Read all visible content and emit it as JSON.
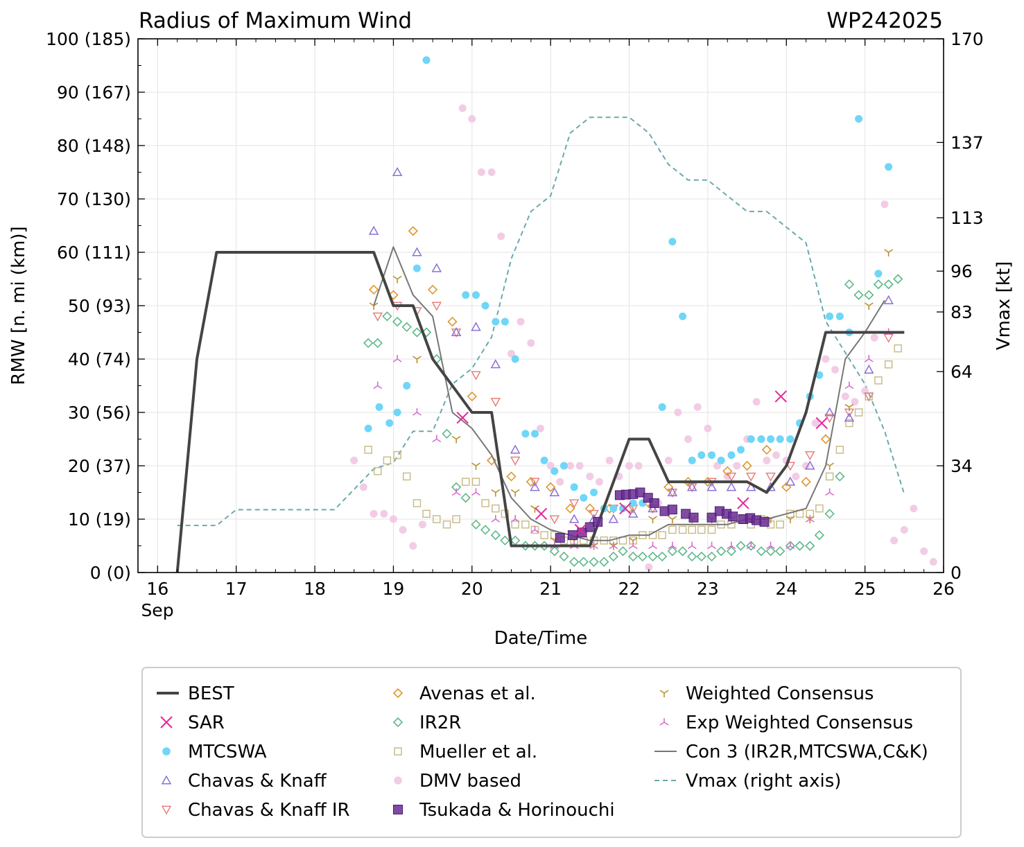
{
  "chart_data": {
    "type": "scatter",
    "title": "Radius of Maximum Wind",
    "title_right": "WP242025",
    "xlabel": "Date/Time",
    "ylabel": "RMW [n. mi (km)]",
    "ylabel_right": "Vmax [kt]",
    "xlim": [
      15.75,
      26.0
    ],
    "ylim": [
      0,
      100
    ],
    "x_ticks": [
      16,
      17,
      18,
      19,
      20,
      21,
      22,
      23,
      24,
      25,
      26
    ],
    "x_tick_labels": [
      "16",
      "17",
      "18",
      "19",
      "20",
      "21",
      "22",
      "23",
      "24",
      "25",
      "26"
    ],
    "x_month_label": "Sep",
    "y_ticks": [
      0,
      10,
      20,
      30,
      40,
      50,
      60,
      70,
      80,
      90,
      100
    ],
    "y_tick_labels": [
      "0 (0)",
      "10 (19)",
      "20 (37)",
      "30 (56)",
      "40 (74)",
      "50 (93)",
      "60 (111)",
      "70 (130)",
      "80 (148)",
      "90 (167)",
      "100 (185)"
    ],
    "y2_lim": [
      0,
      170
    ],
    "y2_ticks": [
      0,
      34,
      64,
      83,
      96,
      113,
      137,
      170
    ],
    "y2_tick_labels": [
      "0",
      "34",
      "64",
      "83",
      "96",
      "113",
      "137",
      "170"
    ],
    "grid": true,
    "legend_position": "bottom",
    "legend": [
      {
        "label": "BEST",
        "marker": "line",
        "color": "#444444"
      },
      {
        "label": "SAR",
        "marker": "x",
        "color": "#e6259a"
      },
      {
        "label": "MTCSWA",
        "marker": "circle",
        "color": "#6fd6f7"
      },
      {
        "label": "Chavas & Knaff",
        "marker": "triangle-up",
        "color": "#8b6fd6"
      },
      {
        "label": "Chavas & Knaff IR",
        "marker": "triangle-down",
        "color": "#e88080"
      },
      {
        "label": "Avenas et al.",
        "marker": "diamond",
        "color": "#e0962b"
      },
      {
        "label": "IR2R",
        "marker": "diamond",
        "color": "#5cb887"
      },
      {
        "label": "Mueller et al.",
        "marker": "square-open",
        "color": "#c9bc8a"
      },
      {
        "label": "DMV based",
        "marker": "circle",
        "color": "#f2cce4"
      },
      {
        "label": "Tsukada & Horinouchi",
        "marker": "square-filled",
        "color": "#6a2b94"
      },
      {
        "label": "Weighted Consensus",
        "marker": "tri-down",
        "color": "#b8902b"
      },
      {
        "label": "Exp Weighted Consensus",
        "marker": "tri-up",
        "color": "#d86ad2"
      },
      {
        "label": "Con 3 (IR2R,MTCSWA,C&K)",
        "marker": "line",
        "color": "#777777"
      },
      {
        "label": "Vmax (right axis)",
        "marker": "dashed",
        "color": "#6aa9ac"
      }
    ],
    "series": [
      {
        "name": "BEST",
        "kind": "line",
        "color": "#444444",
        "x": [
          16.25,
          16.5,
          16.75,
          17.0,
          18.75,
          19.0,
          19.25,
          19.5,
          19.75,
          20.0,
          20.25,
          20.5,
          20.75,
          21.0,
          21.25,
          21.5,
          21.75,
          22.0,
          22.25,
          22.5,
          22.75,
          23.0,
          23.25,
          23.5,
          23.75,
          24.0,
          24.25,
          24.5,
          24.75,
          25.0,
          25.25,
          25.5
        ],
        "y": [
          0,
          40,
          60,
          60,
          60,
          50,
          50,
          40,
          35,
          30,
          30,
          5,
          5,
          5,
          5,
          5,
          15,
          25,
          25,
          17,
          17,
          17,
          17,
          17,
          15,
          20,
          30,
          45,
          45,
          45,
          45,
          45
        ]
      },
      {
        "name": "Con 3 (IR2R,MTCSWA,C&K)",
        "kind": "line",
        "color": "#777777",
        "x": [
          18.75,
          19.0,
          19.25,
          19.5,
          19.75,
          20.0,
          20.25,
          20.5,
          20.75,
          21.0,
          21.25,
          21.5,
          21.75,
          22.0,
          22.25,
          22.5,
          22.75,
          23.0,
          23.25,
          23.5,
          23.75,
          24.0,
          24.25,
          24.5,
          24.75,
          25.0,
          25.25
        ],
        "y": [
          50,
          61,
          52,
          48,
          30,
          27,
          22,
          14,
          10,
          8,
          7,
          6,
          6,
          7,
          7,
          9,
          9,
          9,
          9,
          10,
          10,
          11,
          12,
          20,
          40,
          45,
          51
        ]
      },
      {
        "name": "Vmax (right axis)",
        "kind": "dashed",
        "axis": "right",
        "color": "#6aa9ac",
        "x": [
          16.25,
          16.75,
          17.0,
          18.0,
          18.25,
          18.75,
          19.0,
          19.25,
          19.5,
          19.75,
          20.0,
          20.25,
          20.5,
          20.75,
          21.0,
          21.25,
          21.5,
          21.75,
          22.0,
          22.25,
          22.5,
          22.75,
          23.0,
          23.25,
          23.5,
          23.75,
          24.0,
          24.25,
          24.5,
          24.75,
          25.0,
          25.25,
          25.5
        ],
        "y": [
          15,
          15,
          20,
          20,
          20,
          33,
          35,
          45,
          45,
          60,
          65,
          75,
          100,
          115,
          120,
          140,
          145,
          145,
          145,
          140,
          130,
          125,
          125,
          120,
          115,
          115,
          110,
          105,
          80,
          70,
          60,
          45,
          25
        ]
      },
      {
        "name": "SAR",
        "kind": "x",
        "color": "#e6259a",
        "x": [
          19.88,
          20.88,
          21.38,
          21.95,
          23.45,
          23.93,
          24.45
        ],
        "y": [
          29,
          11,
          8,
          12,
          13,
          33,
          28
        ]
      },
      {
        "name": "MTCSWA",
        "kind": "circle",
        "color": "#6fd6f7",
        "x": [
          18.68,
          18.82,
          18.95,
          19.05,
          19.17,
          19.3,
          19.42,
          19.92,
          20.05,
          20.17,
          20.3,
          20.42,
          20.55,
          20.68,
          20.8,
          20.92,
          21.05,
          21.17,
          21.3,
          21.42,
          21.55,
          21.68,
          21.8,
          21.92,
          22.05,
          22.17,
          22.42,
          22.55,
          22.68,
          22.8,
          22.92,
          23.05,
          23.17,
          23.3,
          23.42,
          23.55,
          23.68,
          23.8,
          23.92,
          24.05,
          24.17,
          24.3,
          24.42,
          24.55,
          24.68,
          24.8,
          24.92,
          25.17,
          25.3
        ],
        "y": [
          27,
          31,
          28,
          30,
          35,
          57,
          96,
          52,
          52,
          50,
          47,
          47,
          40,
          26,
          26,
          21,
          19,
          20,
          16,
          14,
          15,
          12,
          12,
          12,
          13,
          13,
          31,
          62,
          48,
          21,
          22,
          22,
          21,
          22,
          23,
          25,
          25,
          25,
          25,
          25,
          28,
          33,
          37,
          48,
          48,
          45,
          85,
          56,
          76
        ]
      },
      {
        "name": "Chavas & Knaff",
        "kind": "triangle-up",
        "color": "#8b6fd6",
        "x": [
          18.75,
          19.05,
          19.3,
          19.55,
          19.8,
          20.05,
          20.3,
          20.55,
          20.8,
          21.05,
          21.3,
          21.55,
          21.8,
          22.05,
          22.3,
          22.55,
          22.8,
          23.05,
          23.3,
          23.55,
          23.8,
          24.05,
          24.3,
          24.55,
          24.8,
          25.05,
          25.3
        ],
        "y": [
          64,
          75,
          60,
          57,
          45,
          46,
          39,
          23,
          16,
          15,
          10,
          10,
          10,
          11,
          12,
          15,
          16,
          16,
          16,
          16,
          16,
          17,
          20,
          30,
          29,
          38,
          51
        ]
      },
      {
        "name": "Chavas & Knaff IR",
        "kind": "triangle-down",
        "color": "#e88080",
        "x": [
          18.8,
          19.05,
          19.3,
          19.55,
          19.8,
          20.05,
          20.3,
          20.55,
          20.8,
          21.05,
          21.3,
          21.55,
          21.8,
          22.05,
          22.3,
          22.55,
          22.8,
          23.05,
          23.3,
          23.55,
          23.8,
          24.05,
          24.3,
          24.55,
          24.8,
          25.05,
          25.3
        ],
        "y": [
          48,
          50,
          49,
          50,
          45,
          37,
          32,
          21,
          17,
          10,
          13,
          11,
          12,
          12,
          12,
          15,
          16,
          17,
          18,
          18,
          18,
          20,
          22,
          29,
          30,
          33,
          44
        ]
      },
      {
        "name": "Avenas et al.",
        "kind": "diamond",
        "color": "#e0962b",
        "x": [
          18.75,
          19.0,
          19.25,
          19.5,
          19.75,
          20.0,
          20.25,
          20.5,
          20.75,
          21.0,
          21.25,
          21.5,
          21.75,
          22.0,
          22.25,
          22.5,
          22.75,
          23.0,
          23.25,
          23.5,
          23.75,
          24.0,
          24.25,
          24.5
        ],
        "y": [
          53,
          52,
          64,
          53,
          47,
          33,
          21,
          18,
          17,
          16,
          12,
          12,
          12,
          12,
          13,
          16,
          17,
          17,
          19,
          20,
          23,
          16,
          17,
          25
        ]
      },
      {
        "name": "IR2R",
        "kind": "diamond",
        "color": "#5cb887",
        "x": [
          18.68,
          18.8,
          18.92,
          19.05,
          19.17,
          19.3,
          19.42,
          19.55,
          19.68,
          19.8,
          19.92,
          20.05,
          20.17,
          20.3,
          20.42,
          20.55,
          20.68,
          20.8,
          20.92,
          21.05,
          21.17,
          21.3,
          21.42,
          21.55,
          21.68,
          21.8,
          21.92,
          22.05,
          22.17,
          22.3,
          22.42,
          22.55,
          22.68,
          22.8,
          22.92,
          23.05,
          23.17,
          23.3,
          23.42,
          23.55,
          23.68,
          23.8,
          23.92,
          24.05,
          24.17,
          24.3,
          24.42,
          24.55,
          24.68,
          24.8,
          24.92,
          25.05,
          25.17,
          25.3,
          25.42
        ],
        "y": [
          43,
          43,
          48,
          47,
          46,
          45,
          45,
          40,
          26,
          16,
          14,
          9,
          8,
          7,
          6,
          6,
          5,
          5,
          5,
          4,
          3,
          2,
          2,
          2,
          2,
          3,
          4,
          3,
          3,
          3,
          3,
          4,
          4,
          3,
          3,
          3,
          4,
          4,
          5,
          5,
          4,
          4,
          4,
          5,
          5,
          5,
          7,
          11,
          18,
          54,
          52,
          52,
          54,
          54,
          55
        ]
      },
      {
        "name": "Mueller et al.",
        "kind": "square-open",
        "color": "#c9bc8a",
        "x": [
          18.68,
          18.8,
          18.92,
          19.05,
          19.17,
          19.3,
          19.42,
          19.55,
          19.68,
          19.8,
          19.92,
          20.05,
          20.17,
          20.3,
          20.42,
          20.55,
          20.68,
          20.8,
          20.92,
          21.05,
          21.17,
          21.3,
          21.42,
          21.55,
          21.68,
          21.8,
          21.92,
          22.05,
          22.17,
          22.3,
          22.42,
          22.55,
          22.68,
          22.8,
          22.92,
          23.05,
          23.17,
          23.3,
          23.42,
          23.55,
          23.68,
          23.8,
          23.92,
          24.05,
          24.17,
          24.3,
          24.42,
          24.55,
          24.68,
          24.8,
          24.92,
          25.05,
          25.17,
          25.3,
          25.42
        ],
        "y": [
          23,
          19,
          21,
          22,
          18,
          13,
          11,
          10,
          9,
          10,
          17,
          17,
          13,
          12,
          11,
          9,
          9,
          8,
          7,
          7,
          6,
          6,
          6,
          6,
          6,
          6,
          6,
          6,
          7,
          7,
          7,
          8,
          8,
          8,
          8,
          8,
          9,
          9,
          10,
          9,
          10,
          9,
          9,
          11,
          11,
          11,
          12,
          18,
          23,
          28,
          30,
          33,
          36,
          39,
          42
        ]
      },
      {
        "name": "DMV based",
        "kind": "circle",
        "color": "#f2cce4",
        "x": [
          18.5,
          18.62,
          18.75,
          18.88,
          19.0,
          19.12,
          19.25,
          19.37,
          19.88,
          20.0,
          20.12,
          20.25,
          20.37,
          20.5,
          20.62,
          20.75,
          20.87,
          21.0,
          21.12,
          21.25,
          21.37,
          21.5,
          21.62,
          21.75,
          21.87,
          22.0,
          22.12,
          22.25,
          22.37,
          22.5,
          22.62,
          22.75,
          22.87,
          23.0,
          23.12,
          23.25,
          23.37,
          23.5,
          23.62,
          23.75,
          23.87,
          24.0,
          24.12,
          24.25,
          24.37,
          24.5,
          24.62,
          24.75,
          24.87,
          25.0,
          25.12,
          25.25,
          25.37,
          25.5,
          25.62,
          25.75,
          25.87
        ],
        "y": [
          21,
          16,
          11,
          11,
          10,
          8,
          5,
          9,
          87,
          85,
          75,
          75,
          63,
          41,
          47,
          43,
          27,
          20,
          17,
          20,
          20,
          18,
          17,
          21,
          18,
          20,
          20,
          1,
          13,
          21,
          30,
          25,
          31,
          27,
          20,
          18,
          20,
          25,
          32,
          21,
          22,
          21,
          18,
          20,
          28,
          40,
          38,
          33,
          32,
          34,
          44,
          69,
          6,
          8,
          12,
          4,
          2
        ]
      },
      {
        "name": "Tsukada & Horinouchi",
        "kind": "square-filled",
        "color": "#6a2b94",
        "x": [
          21.12,
          21.28,
          21.4,
          21.5,
          21.6,
          21.88,
          21.96,
          22.05,
          22.14,
          22.24,
          22.32,
          22.45,
          22.55,
          22.72,
          22.82,
          23.05,
          23.15,
          23.24,
          23.32,
          23.45,
          23.54,
          23.62,
          23.72
        ],
        "y": [
          6.5,
          7,
          7.5,
          8.5,
          9.5,
          14.5,
          14.6,
          14.7,
          15,
          14,
          13,
          11.5,
          11.8,
          11,
          10.3,
          10.3,
          11.5,
          11,
          10.5,
          10,
          10.2,
          9.8,
          9.5
        ]
      },
      {
        "name": "Weighted Consensus",
        "kind": "tri-down",
        "color": "#b8902b",
        "x": [
          18.75,
          19.05,
          19.3,
          19.8,
          20.05,
          20.3,
          20.55,
          20.8,
          21.05,
          21.3,
          21.55,
          21.8,
          22.05,
          22.3,
          22.55,
          22.8,
          23.05,
          23.3,
          23.55,
          23.8,
          24.05,
          24.3,
          24.55,
          24.8,
          25.05,
          25.3
        ],
        "y": [
          50,
          55,
          40,
          25,
          20,
          15,
          15,
          12,
          6,
          6,
          5,
          5,
          6,
          10,
          10,
          10,
          10,
          10,
          10,
          10,
          10,
          10,
          20,
          31,
          50,
          60
        ]
      },
      {
        "name": "Exp Weighted Consensus",
        "kind": "tri-up",
        "color": "#d86ad2",
        "x": [
          18.8,
          19.05,
          19.3,
          19.55,
          19.8,
          20.05,
          20.3,
          20.55,
          20.8,
          21.05,
          21.3,
          21.55,
          21.8,
          22.05,
          22.3,
          22.55,
          22.8,
          23.05,
          23.3,
          23.55,
          23.8,
          24.05,
          24.3,
          24.55,
          24.8,
          25.05,
          25.3
        ],
        "y": [
          35,
          40,
          30,
          25,
          15,
          15,
          10,
          10,
          8,
          5,
          5,
          5,
          5,
          5,
          5,
          5,
          5,
          5,
          5,
          5,
          5,
          5,
          10,
          15,
          35,
          40,
          45
        ]
      }
    ]
  }
}
